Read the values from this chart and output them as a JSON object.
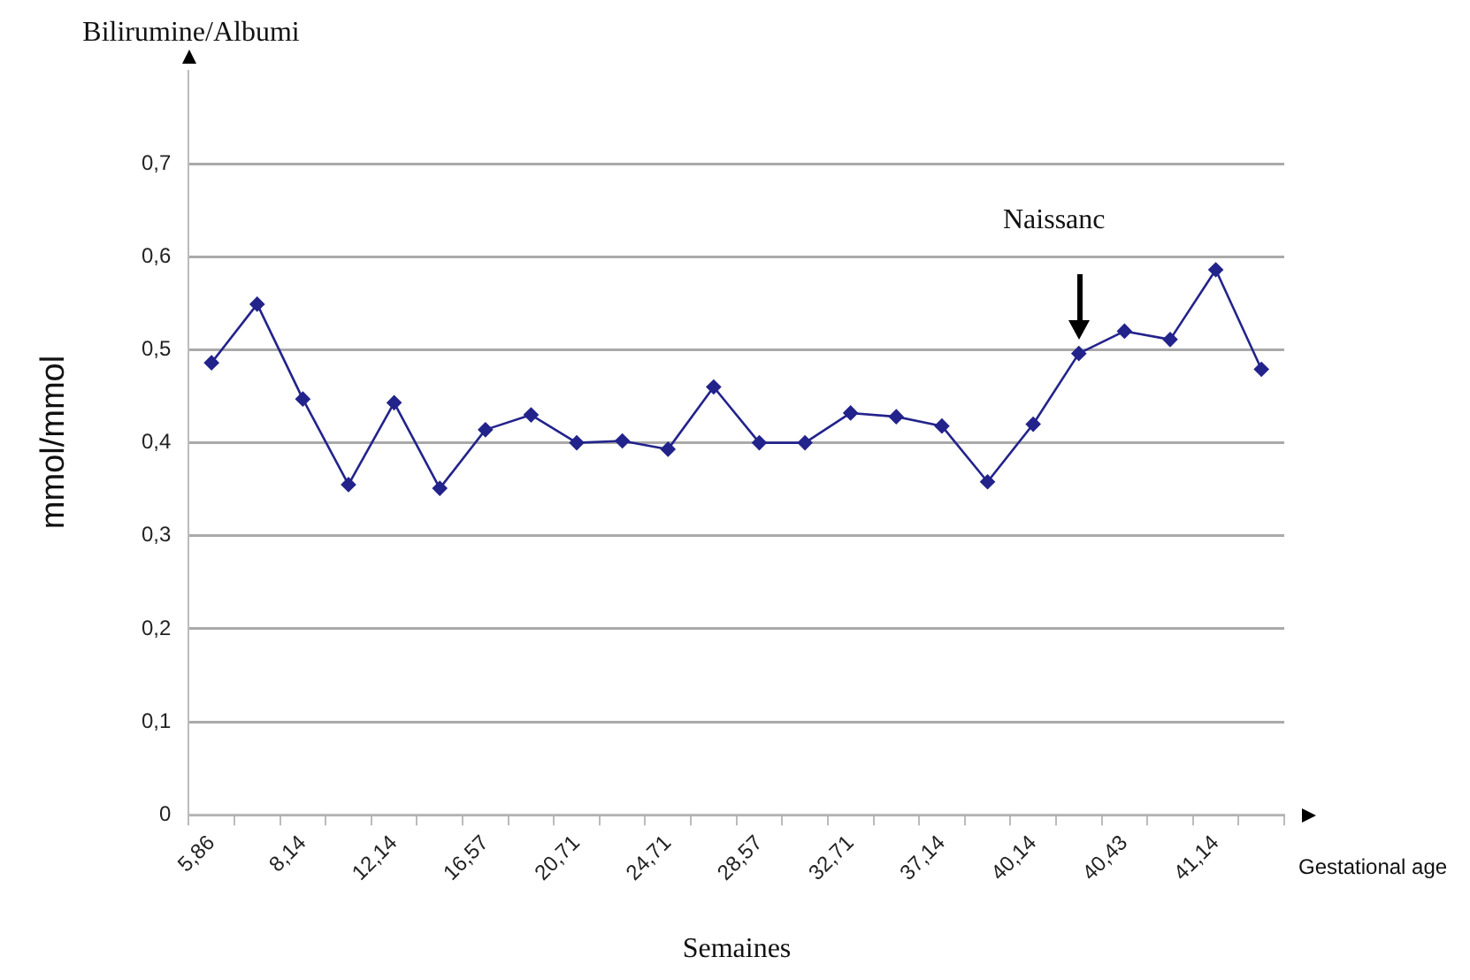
{
  "chart_data": {
    "type": "line",
    "title": "Bilirumine/Albumi",
    "xlabel": "Semaines",
    "ylabel": "mmol/mmol",
    "annotations": [
      "Naissanc",
      "Gestational age"
    ],
    "categories": [
      "5,86",
      null,
      "8,14",
      null,
      "12,14",
      null,
      "16,57",
      null,
      "20,71",
      null,
      "24,71",
      null,
      "28,57",
      null,
      "32,71",
      null,
      "37,14",
      null,
      "40,14",
      null,
      "40,43",
      null,
      "41,14",
      null
    ],
    "series": [
      {
        "color": "#23238c",
        "values": [
          0.486,
          0.549,
          0.447,
          0.355,
          0.443,
          0.351,
          0.414,
          0.43,
          0.4,
          0.402,
          0.393,
          0.46,
          0.4,
          0.4,
          0.432,
          0.428,
          0.418,
          0.358,
          0.42,
          0.496,
          0.52,
          0.511,
          0.586,
          0.479
        ]
      }
    ],
    "ylim": [
      0,
      0.8
    ],
    "yticks": [
      {
        "value": 0,
        "label": "0"
      },
      {
        "value": 0.1,
        "label": "0,1"
      },
      {
        "value": 0.2,
        "label": "0,2"
      },
      {
        "value": 0.3,
        "label": "0,3"
      },
      {
        "value": 0.4,
        "label": "0,4"
      },
      {
        "value": 0.5,
        "label": "0,5"
      },
      {
        "value": 0.6,
        "label": "0,6"
      },
      {
        "value": 0.7,
        "label": "0,7"
      }
    ],
    "grid": "y",
    "legend": false,
    "marker": "diamond",
    "line_style": "solid"
  }
}
